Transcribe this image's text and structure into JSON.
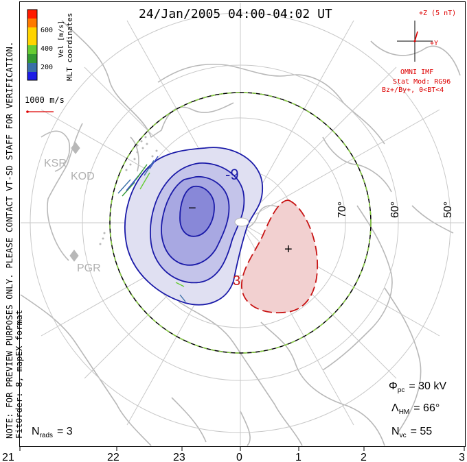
{
  "title": "24/Jan/2005 04:00-04:02 UT",
  "coordinate_label": "MLT coordinates",
  "colorbar": {
    "label": "Vel [m/s]",
    "ticks": [
      "600",
      "400",
      "200"
    ],
    "colors": [
      "#ff1a00",
      "#ff7a00",
      "#ffd400",
      "#66cc33",
      "#339933",
      "#3a6fa8",
      "#3d4fc8",
      "#1d1de6"
    ]
  },
  "vector_scale": "1000 m/s",
  "watermark_line1": "NOTE: FOR PREVIEW PURPOSES ONLY. PLEASE CONTACT VT-SD STAFF FOR VERIFICATION.",
  "watermark_line2": "FitOrder: 8, mapEX format",
  "imf": {
    "z_label": "+Z (5 nT)",
    "y_label": "+Y",
    "source": "OMNI IMF",
    "model": "Stat Mod: RG96",
    "condition": "Bz+/By+, 0<BT<4"
  },
  "stations": [
    "KSR",
    "KOD",
    "PGR"
  ],
  "lat_labels": [
    "70°",
    "60°",
    "50°"
  ],
  "contours": {
    "negative_label": "-9",
    "positive_label": "3",
    "min_marker": "−",
    "max_marker": "+"
  },
  "stats": {
    "phi_pc": "Φ",
    "phi_pc_sub": "pc",
    "phi_pc_value": "= 30 kV",
    "lambda_hm": "Λ",
    "lambda_hm_sub": "HM",
    "lambda_hm_value": "= 66°",
    "n_vc": "N",
    "n_vc_sub": "vc",
    "n_vc_value": "= 55",
    "n_rads": "N",
    "n_rads_sub": "rads",
    "n_rads_value": "= 3"
  },
  "mlt_labels": [
    "21",
    "22",
    "23",
    "0",
    "1",
    "2",
    "3"
  ],
  "colors": {
    "frame": "#000000",
    "land": "#b8b8b8",
    "grid": "#c8c8c8",
    "negative_line": "#1a1aa8",
    "negative_fill": "#9898e0",
    "positive_line": "#c81414",
    "positive_fill": "#f2d0d0",
    "imf_red": "#dd0000",
    "hmb_green": "#88cc44"
  }
}
